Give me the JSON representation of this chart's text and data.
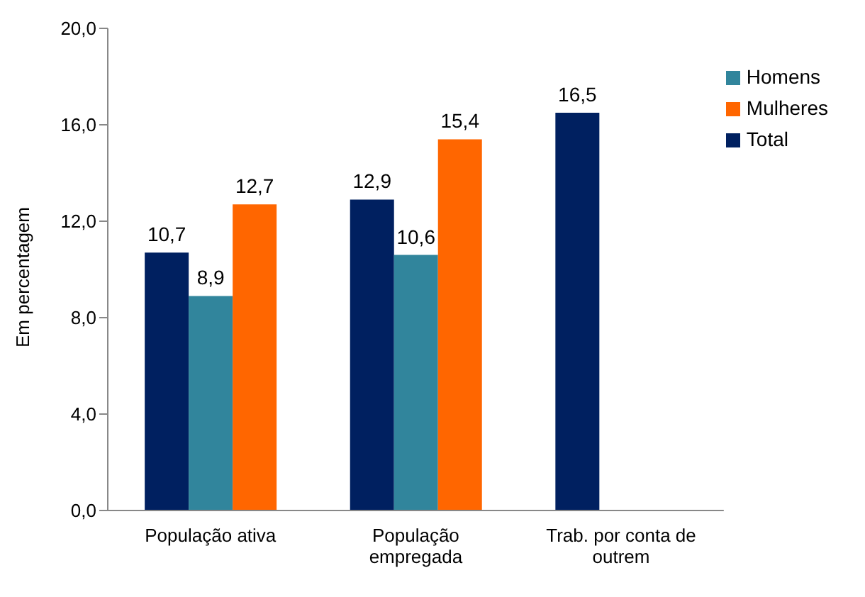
{
  "chart_data": {
    "type": "bar",
    "ylabel": "Em percentagem",
    "categories": [
      "População ativa",
      "População empregada",
      "Trab. por conta de outrem"
    ],
    "series": [
      {
        "name": "Total",
        "color": "#002060",
        "values": [
          10.7,
          12.9,
          16.5
        ],
        "value_labels": [
          "10,7",
          "12,9",
          "16,5"
        ]
      },
      {
        "name": "Homens",
        "color": "#31859c",
        "values": [
          8.9,
          10.6,
          null
        ],
        "value_labels": [
          "8,9",
          "10,6",
          null
        ]
      },
      {
        "name": "Mulheres",
        "color": "#ff6600",
        "values": [
          12.7,
          15.4,
          null
        ],
        "value_labels": [
          "12,7",
          "15,4",
          null
        ]
      }
    ],
    "ylim": [
      0,
      20
    ],
    "yticks": [
      {
        "value": 0,
        "label": "0,0"
      },
      {
        "value": 4,
        "label": "4,0"
      },
      {
        "value": 8,
        "label": "8,0"
      },
      {
        "value": 12,
        "label": "12,0"
      },
      {
        "value": 16,
        "label": "16,0"
      },
      {
        "value": 20,
        "label": "20,0"
      }
    ],
    "grid": false,
    "legend": "top right"
  }
}
